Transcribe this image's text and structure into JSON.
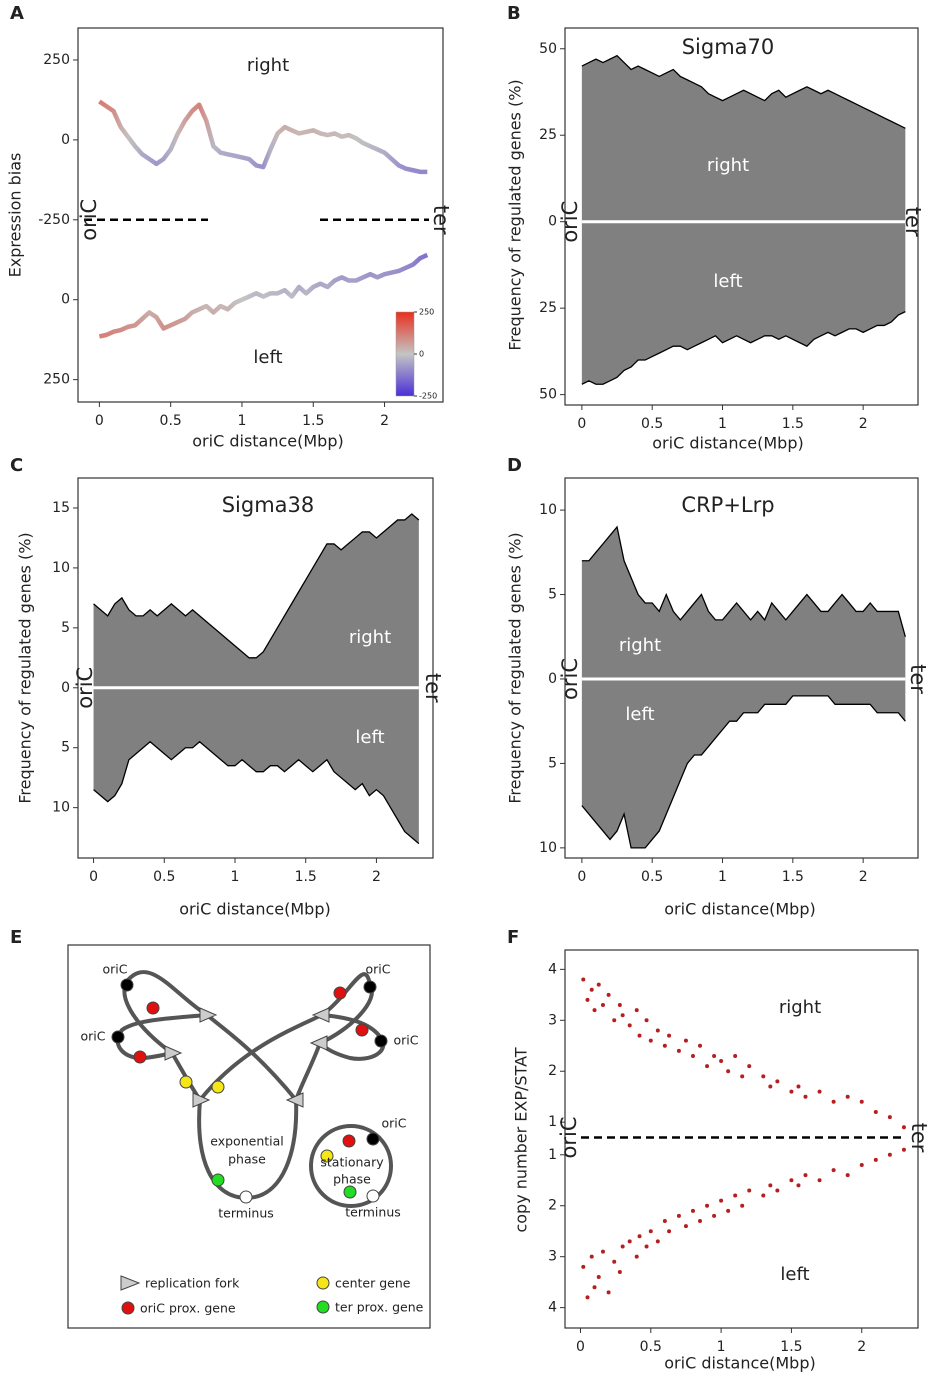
{
  "chart_data": [
    {
      "panel": "A",
      "type": "line",
      "xlabel": "oriC distance(Mbp)",
      "ylabel": "Expression bias",
      "upper_label": "right",
      "lower_label": "left",
      "start_label": "oriC",
      "end_label": "ter",
      "midline": "dashed",
      "x": [
        0,
        0.05,
        0.1,
        0.15,
        0.2,
        0.25,
        0.3,
        0.35,
        0.4,
        0.45,
        0.5,
        0.55,
        0.6,
        0.65,
        0.7,
        0.75,
        0.8,
        0.85,
        0.9,
        0.95,
        1,
        1.05,
        1.1,
        1.15,
        1.2,
        1.25,
        1.3,
        1.35,
        1.4,
        1.45,
        1.5,
        1.55,
        1.6,
        1.65,
        1.7,
        1.75,
        1.8,
        1.85,
        1.9,
        1.95,
        2,
        2.05,
        2.1,
        2.15,
        2.2,
        2.25,
        2.3
      ],
      "series": [
        {
          "name": "right",
          "axis": "y",
          "values": [
            120,
            105,
            90,
            40,
            10,
            -20,
            -45,
            -60,
            -75,
            -60,
            -30,
            20,
            60,
            90,
            110,
            60,
            -20,
            -40,
            -45,
            -50,
            -55,
            -60,
            -80,
            -85,
            -30,
            20,
            40,
            30,
            20,
            25,
            30,
            20,
            15,
            20,
            10,
            15,
            5,
            -10,
            -20,
            -30,
            -40,
            -60,
            -80,
            -90,
            -95,
            -100,
            -100
          ]
        },
        {
          "name": "left",
          "axis": "y2",
          "values": [
            115,
            110,
            100,
            95,
            85,
            80,
            60,
            40,
            55,
            90,
            80,
            70,
            60,
            40,
            30,
            20,
            40,
            20,
            30,
            10,
            0,
            -10,
            -20,
            -10,
            -20,
            -20,
            -30,
            -10,
            -40,
            -20,
            -40,
            -50,
            -40,
            -60,
            -70,
            -60,
            -60,
            -70,
            -80,
            -70,
            -80,
            -85,
            -90,
            -100,
            -110,
            -130,
            -140
          ]
        }
      ],
      "colorscale": {
        "colors": [
          "#4b2fd6",
          "#c4c4c4",
          "#e8301e"
        ],
        "lim": [
          -250,
          250
        ],
        "ticks": [
          250,
          0,
          -250
        ]
      },
      "xlim": [
        -0.15,
        2.41
      ],
      "xticks": [
        0,
        0.5,
        1,
        1.5,
        2
      ],
      "ylim": [
        -250,
        350
      ],
      "yticks": [
        -250,
        0,
        250
      ],
      "y2lim": [
        -250,
        320
      ],
      "y2ticks": [
        0,
        250
      ]
    },
    {
      "panel": "B",
      "type": "area",
      "title": "Sigma70",
      "xlabel": "oriC distance(Mbp)",
      "ylabel": "Frequency of regulated genes (%)",
      "upper_label": "right",
      "lower_label": "left",
      "start_label": "oriC",
      "end_label": "ter",
      "midline": "white",
      "color": "#808080",
      "x": [
        0,
        0.05,
        0.1,
        0.15,
        0.2,
        0.25,
        0.3,
        0.35,
        0.4,
        0.45,
        0.5,
        0.55,
        0.6,
        0.65,
        0.7,
        0.75,
        0.8,
        0.85,
        0.9,
        0.95,
        1,
        1.05,
        1.1,
        1.15,
        1.2,
        1.25,
        1.3,
        1.35,
        1.4,
        1.45,
        1.5,
        1.55,
        1.6,
        1.65,
        1.7,
        1.75,
        1.8,
        1.85,
        1.9,
        1.95,
        2,
        2.05,
        2.1,
        2.15,
        2.2,
        2.25,
        2.3
      ],
      "series": [
        {
          "name": "right",
          "axis": "y",
          "values": [
            45,
            46,
            47,
            46,
            47,
            48,
            46,
            44,
            45,
            44,
            43,
            42,
            43,
            44,
            42,
            41,
            40,
            39,
            37,
            36,
            35,
            36,
            37,
            38,
            37,
            36,
            35,
            37,
            38,
            36,
            37,
            38,
            39,
            38,
            37,
            38,
            37,
            36,
            35,
            34,
            33,
            32,
            31,
            30,
            29,
            28,
            27
          ]
        },
        {
          "name": "left",
          "axis": "y2",
          "values": [
            47,
            46,
            47,
            47,
            46,
            45,
            43,
            42,
            40,
            40,
            39,
            38,
            37,
            36,
            36,
            37,
            36,
            35,
            34,
            33,
            35,
            34,
            33,
            34,
            35,
            34,
            33,
            33,
            34,
            33,
            34,
            35,
            36,
            34,
            33,
            32,
            33,
            32,
            31,
            31,
            32,
            31,
            30,
            30,
            29,
            27,
            26
          ]
        }
      ],
      "xlim": [
        -0.12,
        2.39
      ],
      "xticks": [
        0,
        0.5,
        1,
        1.5,
        2
      ],
      "ylim": [
        0,
        56
      ],
      "yticks": [
        0,
        25,
        50
      ],
      "y2lim": [
        0,
        53
      ],
      "y2ticks": [
        25,
        50
      ]
    },
    {
      "panel": "C",
      "type": "area",
      "title": "Sigma38",
      "xlabel": "oriC distance(Mbp)",
      "ylabel": "Frequency of regulated genes (%)",
      "upper_label": "right",
      "lower_label": "left",
      "start_label": "oriC",
      "end_label": "ter",
      "midline": "white",
      "color": "#808080",
      "x": [
        0,
        0.05,
        0.1,
        0.15,
        0.2,
        0.25,
        0.3,
        0.35,
        0.4,
        0.45,
        0.5,
        0.55,
        0.6,
        0.65,
        0.7,
        0.75,
        0.8,
        0.85,
        0.9,
        0.95,
        1,
        1.05,
        1.1,
        1.15,
        1.2,
        1.25,
        1.3,
        1.35,
        1.4,
        1.45,
        1.5,
        1.55,
        1.6,
        1.65,
        1.7,
        1.75,
        1.8,
        1.85,
        1.9,
        1.95,
        2,
        2.05,
        2.1,
        2.15,
        2.2,
        2.25,
        2.3
      ],
      "series": [
        {
          "name": "right",
          "axis": "y",
          "values": [
            7,
            6.5,
            6,
            7,
            7.5,
            6.5,
            6,
            6,
            6.5,
            6,
            6.5,
            7,
            6.5,
            6,
            6.5,
            6,
            5.5,
            5,
            4.5,
            4,
            3.5,
            3,
            2.5,
            2.5,
            3,
            4,
            5,
            6,
            7,
            8,
            9,
            10,
            11,
            12,
            12,
            11.5,
            12,
            12.5,
            13,
            13,
            12.5,
            13,
            13.5,
            14,
            14,
            14.5,
            14
          ]
        },
        {
          "name": "left",
          "axis": "y2",
          "values": [
            8.5,
            9,
            9.5,
            9,
            8,
            6,
            5.5,
            5,
            4.5,
            5,
            5.5,
            6,
            5.5,
            5,
            5,
            4.5,
            5,
            5.5,
            6,
            6.5,
            6.5,
            6,
            6.5,
            7,
            7,
            6.5,
            6.5,
            7,
            6.5,
            6,
            6.5,
            7,
            6.5,
            6,
            7,
            7.5,
            8,
            8.5,
            8,
            9,
            8.5,
            9,
            10,
            11,
            12,
            12.5,
            13
          ]
        }
      ],
      "xlim": [
        -0.11,
        2.4
      ],
      "xticks": [
        0,
        0.5,
        1,
        1.5,
        2
      ],
      "ylim": [
        0,
        17.5
      ],
      "yticks": [
        0,
        5,
        10,
        15
      ],
      "y2lim": [
        0,
        14.2
      ],
      "y2ticks": [
        5,
        10
      ]
    },
    {
      "panel": "D",
      "type": "area",
      "title": "CRP+Lrp",
      "xlabel": "oriC distance(Mbp)",
      "ylabel": "Frequency of regulated genes (%)",
      "upper_label": "right",
      "lower_label": "left",
      "start_label": "oriC",
      "end_label": "ter",
      "midline": "white",
      "color": "#808080",
      "x": [
        0,
        0.05,
        0.1,
        0.15,
        0.2,
        0.25,
        0.3,
        0.35,
        0.4,
        0.45,
        0.5,
        0.55,
        0.6,
        0.65,
        0.7,
        0.75,
        0.8,
        0.85,
        0.9,
        0.95,
        1,
        1.05,
        1.1,
        1.15,
        1.2,
        1.25,
        1.3,
        1.35,
        1.4,
        1.45,
        1.5,
        1.55,
        1.6,
        1.65,
        1.7,
        1.75,
        1.8,
        1.85,
        1.9,
        1.95,
        2,
        2.05,
        2.1,
        2.15,
        2.2,
        2.25,
        2.3
      ],
      "series": [
        {
          "name": "right",
          "axis": "y",
          "values": [
            7,
            7,
            7.5,
            8,
            8.5,
            9,
            7,
            6,
            5,
            4.5,
            4.5,
            4,
            5,
            4,
            3.5,
            4,
            4.5,
            5,
            4,
            3.5,
            3.5,
            4,
            4.5,
            4,
            3.5,
            4,
            3.5,
            4.5,
            4,
            3.5,
            4,
            4.5,
            5,
            4.5,
            4,
            4,
            4.5,
            5,
            4.5,
            4,
            4,
            4.5,
            4,
            4,
            4,
            4,
            2.5
          ]
        },
        {
          "name": "left",
          "axis": "y2",
          "values": [
            7.5,
            8,
            8.5,
            9,
            9.5,
            9,
            8,
            10,
            10,
            10,
            9.5,
            9,
            8,
            7,
            6,
            5,
            4.5,
            4.5,
            4,
            3.5,
            3,
            2.5,
            2.5,
            2,
            2,
            2,
            1.5,
            1.5,
            1.5,
            1.5,
            1,
            1,
            1,
            1,
            1,
            1,
            1.5,
            1.5,
            1.5,
            1.5,
            1.5,
            1.5,
            2,
            2,
            2,
            2,
            2.5
          ]
        }
      ],
      "xlim": [
        -0.12,
        2.39
      ],
      "xticks": [
        0,
        0.5,
        1,
        1.5,
        2
      ],
      "ylim": [
        0,
        11.9
      ],
      "yticks": [
        0,
        5,
        10
      ],
      "y2lim": [
        0,
        10.6
      ],
      "y2ticks": [
        5,
        10
      ]
    },
    {
      "panel": "F",
      "type": "scatter",
      "xlabel": "oriC distance(Mbp)",
      "ylabel": "copy number EXP/STAT",
      "upper_label": "right",
      "lower_label": "left",
      "start_label": "oriC",
      "end_label": "ter",
      "midline": "dashed",
      "color": "#b51f1f",
      "series": [
        {
          "name": "right",
          "axis": "y",
          "x": [
            0.02,
            0.05,
            0.08,
            0.1,
            0.13,
            0.16,
            0.2,
            0.24,
            0.28,
            0.3,
            0.35,
            0.4,
            0.42,
            0.47,
            0.5,
            0.55,
            0.6,
            0.63,
            0.7,
            0.75,
            0.8,
            0.85,
            0.9,
            0.95,
            1,
            1.05,
            1.1,
            1.15,
            1.2,
            1.3,
            1.35,
            1.4,
            1.5,
            1.55,
            1.6,
            1.7,
            1.8,
            1.9,
            2,
            2.1,
            2.2,
            2.3
          ],
          "values": [
            3.8,
            3.4,
            3.6,
            3.2,
            3.7,
            3.3,
            3.5,
            3,
            3.3,
            3.1,
            2.9,
            3.2,
            2.7,
            3,
            2.6,
            2.8,
            2.5,
            2.7,
            2.4,
            2.6,
            2.3,
            2.5,
            2.1,
            2.3,
            2.2,
            2,
            2.3,
            1.9,
            2.1,
            1.9,
            1.7,
            1.8,
            1.6,
            1.7,
            1.5,
            1.6,
            1.4,
            1.5,
            1.4,
            1.2,
            1.1,
            0.9
          ]
        },
        {
          "name": "left",
          "axis": "y2",
          "x": [
            0.02,
            0.05,
            0.08,
            0.1,
            0.13,
            0.16,
            0.2,
            0.24,
            0.28,
            0.3,
            0.35,
            0.4,
            0.42,
            0.47,
            0.5,
            0.55,
            0.6,
            0.63,
            0.7,
            0.75,
            0.8,
            0.85,
            0.9,
            0.95,
            1,
            1.05,
            1.1,
            1.15,
            1.2,
            1.3,
            1.35,
            1.4,
            1.5,
            1.55,
            1.6,
            1.7,
            1.8,
            1.9,
            2,
            2.1,
            2.2,
            2.3
          ],
          "values": [
            3.2,
            3.8,
            3,
            3.6,
            3.4,
            2.9,
            3.7,
            3.1,
            3.3,
            2.8,
            2.7,
            3,
            2.6,
            2.8,
            2.5,
            2.7,
            2.3,
            2.5,
            2.2,
            2.4,
            2.1,
            2.3,
            2,
            2.2,
            1.9,
            2.1,
            1.8,
            2,
            1.7,
            1.8,
            1.6,
            1.7,
            1.5,
            1.6,
            1.4,
            1.5,
            1.3,
            1.4,
            1.2,
            1.1,
            1,
            0.9
          ]
        }
      ],
      "xlim": [
        -0.11,
        2.4
      ],
      "xticks": [
        0,
        0.5,
        1,
        1.5,
        2
      ],
      "ylim": [
        0.7,
        4.38
      ],
      "yticks": [
        1,
        2,
        3,
        4
      ],
      "y2lim": [
        0.66,
        4.4
      ],
      "y2ticks": [
        1,
        2,
        3,
        4
      ]
    }
  ],
  "diagram": {
    "panel": "E",
    "oric": [
      "oriC",
      "oriC",
      "oriC",
      "oriC",
      "oriC"
    ],
    "exponential": [
      "exponential",
      "phase"
    ],
    "stationary": [
      "stationary",
      "phase"
    ],
    "terminus": [
      "terminus",
      "terminus"
    ],
    "legend": [
      "replication fork",
      "center gene",
      "oriC prox. gene",
      "ter prox. gene"
    ]
  }
}
